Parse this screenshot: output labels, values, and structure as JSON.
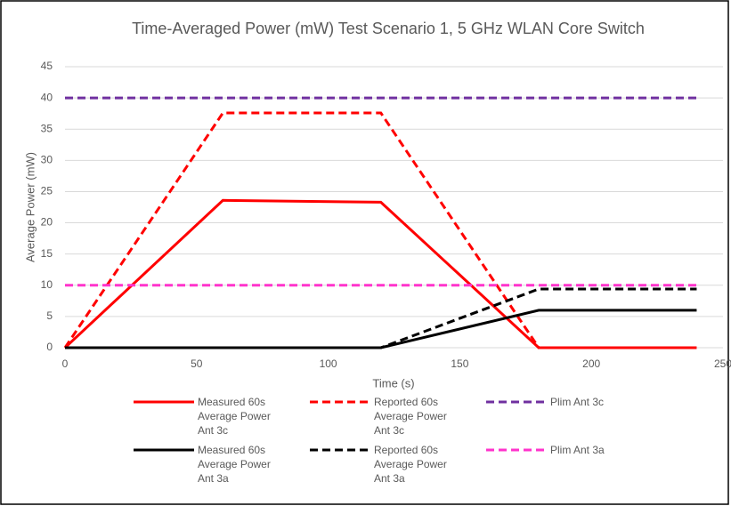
{
  "chart_data": {
    "type": "line",
    "title": "Time-Averaged Power (mW) Test Scenario 1, 5 GHz WLAN Core Switch",
    "xlabel": "Time (s)",
    "ylabel": "Average Power (mW)",
    "x": [
      0,
      60,
      120,
      180,
      240
    ],
    "series": [
      {
        "name": "Measured 60s Average Power Ant 3c",
        "color": "#ff0000",
        "style": "solid",
        "values": [
          0,
          23.6,
          23.3,
          0,
          0
        ]
      },
      {
        "name": "Reported 60s Average Power Ant 3c",
        "color": "#ff0000",
        "style": "dashed",
        "values": [
          0,
          37.6,
          37.6,
          0,
          0
        ]
      },
      {
        "name": "Plim Ant 3c",
        "color": "#7030a0",
        "style": "dashed",
        "values": [
          40,
          40,
          40,
          40,
          40
        ]
      },
      {
        "name": "Measured 60s Average Power Ant 3a",
        "color": "#000000",
        "style": "solid",
        "values": [
          0,
          0,
          0,
          6,
          6
        ]
      },
      {
        "name": "Reported 60s Average Power Ant 3a",
        "color": "#000000",
        "style": "dashed",
        "values": [
          0,
          0,
          0,
          9.4,
          9.4
        ]
      },
      {
        "name": "Plim Ant 3a",
        "color": "#ff33cc",
        "style": "dashed",
        "values": [
          10,
          10,
          10,
          10,
          10
        ]
      }
    ],
    "xlim": [
      0,
      250
    ],
    "xticks": [
      0,
      50,
      100,
      150,
      200,
      250
    ],
    "ylim": [
      0,
      45
    ],
    "yticks": [
      0,
      5,
      10,
      15,
      20,
      25,
      30,
      35,
      40,
      45
    ],
    "grid": true,
    "legend": "bottom"
  }
}
